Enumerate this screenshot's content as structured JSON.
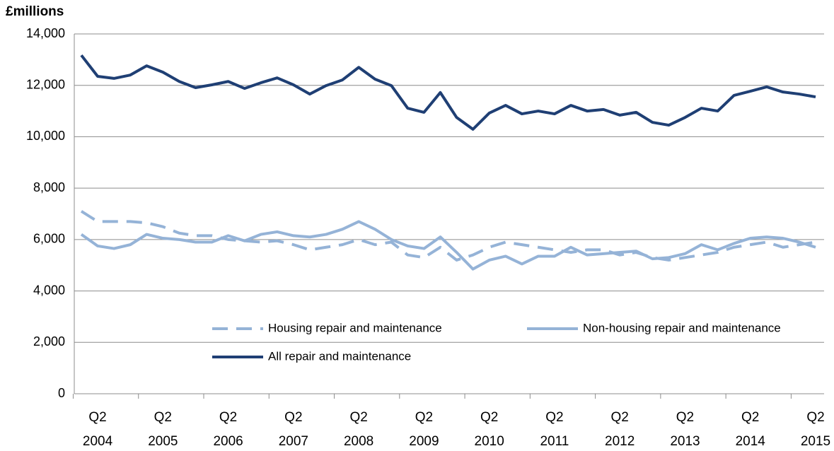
{
  "chart_data": {
    "type": "line",
    "y_axis_label": "£millions",
    "categories": [
      null,
      "Q2 2004",
      null,
      null,
      null,
      "Q2 2005",
      null,
      null,
      null,
      "Q2 2006",
      null,
      null,
      null,
      "Q2 2007",
      null,
      null,
      null,
      "Q2 2008",
      null,
      null,
      null,
      "Q2 2009",
      null,
      null,
      null,
      "Q2 2010",
      null,
      null,
      null,
      "Q2 2011",
      null,
      null,
      null,
      "Q2 2012",
      null,
      null,
      null,
      "Q2 2013",
      null,
      null,
      null,
      "Q2 2014",
      null,
      null,
      null,
      "Q2 2015"
    ],
    "series": [
      {
        "name": "Housing repair and maintenance",
        "color": "#95b3d7",
        "dash": true,
        "values": [
          7100,
          6700,
          6700,
          6700,
          6650,
          6500,
          6250,
          6150,
          6150,
          6000,
          5950,
          5900,
          5950,
          5800,
          5600,
          5700,
          5800,
          6000,
          5800,
          5900,
          5400,
          5300,
          5700,
          5200,
          5400,
          5700,
          5900,
          5800,
          5700,
          5600,
          5500,
          5600,
          5600,
          5400,
          5500,
          5300,
          5200,
          5300,
          5400,
          5500,
          5700,
          5800,
          5900,
          5700,
          5800,
          5900
        ]
      },
      {
        "name": "Non-housing repair and maintenance",
        "color": "#95b3d7",
        "dash": false,
        "values": [
          6200,
          5750,
          5650,
          5800,
          6200,
          6050,
          6000,
          5900,
          5900,
          6150,
          5950,
          6200,
          6300,
          6150,
          6100,
          6200,
          6400,
          6700,
          6400,
          6000,
          5750,
          5650,
          6100,
          5500,
          4850,
          5200,
          5350,
          5050,
          5350,
          5350,
          5700,
          5400,
          5450,
          5500,
          5550,
          5250,
          5300,
          5450,
          5800,
          5600,
          5850,
          6050,
          6100,
          6050,
          5900,
          5700
        ]
      },
      {
        "name": "All repair and maintenance",
        "color": "#1f3f74",
        "dash": false,
        "values": [
          13170,
          12350,
          12270,
          12400,
          12760,
          12510,
          12150,
          11910,
          12020,
          12150,
          11880,
          12100,
          12290,
          12020,
          11660,
          11990,
          12210,
          12700,
          12240,
          11990,
          11110,
          10950,
          11720,
          10750,
          10290,
          10920,
          11220,
          10890,
          11000,
          10890,
          11220,
          11000,
          11060,
          10840,
          10950,
          10560,
          10450,
          10750,
          11110,
          11000,
          11610,
          11770,
          11940,
          11740,
          11660,
          11550
        ]
      }
    ],
    "ylim": [
      0,
      14000
    ],
    "yticks": [
      0,
      {
        "value": 2000,
        "label": "2,000"
      },
      {
        "value": 4000,
        "label": "4,000"
      },
      {
        "value": 6000,
        "label": "6,000"
      },
      {
        "value": 8000,
        "label": "8,000"
      },
      {
        "value": 10000,
        "label": "10,000"
      },
      {
        "value": 12000,
        "label": "12,000"
      },
      {
        "value": 14000,
        "label": "14,000"
      }
    ],
    "grid": true
  }
}
